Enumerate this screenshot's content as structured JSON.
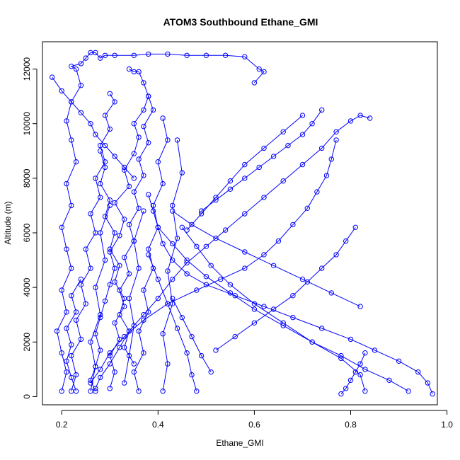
{
  "chart_data": {
    "type": "line",
    "title": "ATOM3 Southbound Ethane_GMI",
    "xlabel": "Ethane_GMI",
    "ylabel": "Altitude (m)",
    "xlim": [
      0.16,
      0.98
    ],
    "ylim": [
      -300,
      13000
    ],
    "xticks": [
      0.2,
      0.4,
      0.6,
      0.8,
      1.0
    ],
    "xtick_labels": [
      "0.2",
      "0.4",
      "0.6",
      "0.8",
      "1.0"
    ],
    "yticks": [
      0,
      2000,
      4000,
      6000,
      8000,
      10000,
      12000
    ],
    "ytick_labels": [
      "0",
      "2000",
      "4000",
      "6000",
      "8000",
      "10000",
      "12000"
    ],
    "grid": false,
    "marker": "open-circle",
    "series_color": "#0000ff",
    "series": [
      {
        "x": [
          0.2,
          0.21,
          0.2,
          0.19,
          0.21,
          0.2,
          0.22,
          0.21,
          0.2,
          0.22,
          0.21,
          0.23,
          0.22,
          0.21,
          0.22,
          0.24,
          0.23,
          0.22,
          0.24,
          0.25,
          0.26,
          0.27,
          0.28,
          0.29,
          0.31,
          0.35,
          0.38,
          0.42,
          0.46,
          0.5,
          0.54,
          0.58,
          0.61,
          0.62,
          0.6
        ],
        "y": [
          200,
          900,
          1600,
          2400,
          3100,
          3900,
          4700,
          5400,
          6200,
          7000,
          7800,
          8600,
          9400,
          10100,
          10800,
          11400,
          12000,
          12100,
          12200,
          12400,
          12600,
          12600,
          12400,
          12500,
          12500,
          12500,
          12550,
          12550,
          12500,
          12500,
          12500,
          12450,
          12000,
          11900,
          11500
        ]
      },
      {
        "x": [
          0.27,
          0.26,
          0.27,
          0.28,
          0.27,
          0.28,
          0.29,
          0.3,
          0.31,
          0.3,
          0.32,
          0.33,
          0.31,
          0.34,
          0.33,
          0.35,
          0.36,
          0.35,
          0.37,
          0.38,
          0.37,
          0.36,
          0.35,
          0.34
        ],
        "y": [
          200,
          600,
          1100,
          1700,
          2300,
          2900,
          3500,
          4100,
          4700,
          5300,
          5900,
          6500,
          7100,
          7700,
          8300,
          8900,
          9500,
          10000,
          10500,
          11000,
          11500,
          11900,
          11900,
          12000
        ]
      },
      {
        "x": [
          0.27,
          0.28,
          0.3,
          0.32,
          0.34,
          0.37,
          0.4,
          0.43,
          0.46,
          0.5,
          0.54,
          0.58,
          0.62,
          0.66,
          0.7,
          0.74,
          0.77,
          0.8,
          0.82,
          0.84
        ],
        "y": [
          300,
          700,
          1200,
          1800,
          2400,
          3000,
          3600,
          4300,
          4900,
          5500,
          6100,
          6700,
          7300,
          7900,
          8500,
          9100,
          9700,
          10100,
          10300,
          10200
        ]
      },
      {
        "x": [
          0.26,
          0.28,
          0.3,
          0.33,
          0.37,
          0.42,
          0.48,
          0.53,
          0.58,
          0.62,
          0.65,
          0.68,
          0.71,
          0.73,
          0.75,
          0.76,
          0.77
        ],
        "y": [
          500,
          1000,
          1600,
          2200,
          2800,
          3400,
          3900,
          4300,
          4700,
          5200,
          5700,
          6300,
          6900,
          7500,
          8100,
          8700,
          9400
        ]
      },
      {
        "x": [
          0.97,
          0.96,
          0.94,
          0.9,
          0.85,
          0.8,
          0.74,
          0.68,
          0.62,
          0.56,
          0.5,
          0.46,
          0.43,
          0.41,
          0.4,
          0.39,
          0.38
        ],
        "y": [
          100,
          500,
          900,
          1300,
          1700,
          2100,
          2500,
          2900,
          3300,
          3700,
          4100,
          4500,
          5000,
          5600,
          6200,
          6800,
          7400
        ]
      },
      {
        "x": [
          0.92,
          0.88,
          0.83,
          0.78,
          0.72,
          0.66,
          0.6,
          0.55,
          0.5,
          0.46,
          0.43,
          0.4
        ],
        "y": [
          200,
          600,
          1000,
          1500,
          2000,
          2600,
          3200,
          3800,
          4400,
          5000,
          5600,
          6200
        ]
      },
      {
        "x": [
          0.83,
          0.82,
          0.78,
          0.72,
          0.66,
          0.6,
          0.55,
          0.51,
          0.48,
          0.45
        ],
        "y": [
          200,
          800,
          1400,
          2000,
          2700,
          3400,
          4100,
          4800,
          5500,
          6200
        ]
      },
      {
        "x": [
          0.22,
          0.23,
          0.22,
          0.24,
          0.23,
          0.25,
          0.24,
          0.26,
          0.25,
          0.27,
          0.26,
          0.28,
          0.27,
          0.29,
          0.28,
          0.3,
          0.29,
          0.31,
          0.3
        ],
        "y": [
          200,
          800,
          1500,
          2100,
          2800,
          3400,
          4100,
          4700,
          5400,
          6000,
          6700,
          7300,
          8000,
          8600,
          9200,
          9800,
          10300,
          10800,
          11100
        ]
      },
      {
        "x": [
          0.3,
          0.31,
          0.3,
          0.32,
          0.31,
          0.33,
          0.32,
          0.34,
          0.33,
          0.35,
          0.34,
          0.36,
          0.35,
          0.37,
          0.36,
          0.38,
          0.37,
          0.39,
          0.38
        ],
        "y": [
          300,
          900,
          1500,
          2100,
          2700,
          3300,
          3900,
          4500,
          5100,
          5700,
          6300,
          6900,
          7500,
          8100,
          8700,
          9300,
          9900,
          10500,
          11000
        ]
      },
      {
        "x": [
          0.36,
          0.35,
          0.37,
          0.36,
          0.38,
          0.37,
          0.39,
          0.38,
          0.4,
          0.39,
          0.41,
          0.4,
          0.42,
          0.41
        ],
        "y": [
          200,
          900,
          1600,
          2400,
          3100,
          3900,
          4700,
          5400,
          6200,
          7000,
          7800,
          8600,
          9400,
          10200
        ]
      },
      {
        "x": [
          0.41,
          0.42,
          0.41,
          0.43,
          0.42,
          0.44,
          0.43,
          0.45,
          0.44
        ],
        "y": [
          200,
          1200,
          2300,
          3400,
          4600,
          5800,
          7000,
          8200,
          9400
        ]
      },
      {
        "x": [
          0.48,
          0.47,
          0.46,
          0.44,
          0.42,
          0.4,
          0.38
        ],
        "y": [
          200,
          800,
          1600,
          2500,
          3400,
          4300,
          5200
        ]
      },
      {
        "x": [
          0.51,
          0.49,
          0.47,
          0.45,
          0.43
        ],
        "y": [
          900,
          1500,
          2200,
          2900,
          3600
        ]
      },
      {
        "x": [
          0.28,
          0.29,
          0.28,
          0.3,
          0.29,
          0.31,
          0.3,
          0.32,
          0.31,
          0.33,
          0.32,
          0.34,
          0.33,
          0.35
        ],
        "y": [
          9000,
          8400,
          7800,
          7200,
          6600,
          6000,
          5400,
          4800,
          4200,
          3600,
          3000,
          2400,
          1800,
          1200
        ]
      },
      {
        "x": [
          0.18,
          0.2,
          0.22,
          0.24,
          0.26,
          0.27,
          0.29,
          0.31,
          0.33,
          0.35
        ],
        "y": [
          11700,
          11200,
          10800,
          10400,
          10000,
          9600,
          9200,
          8800,
          8400,
          8000
        ]
      },
      {
        "x": [
          0.74,
          0.72,
          0.7,
          0.67,
          0.64,
          0.61,
          0.58,
          0.55,
          0.52,
          0.49
        ],
        "y": [
          10500,
          10000,
          9600,
          9200,
          8800,
          8400,
          8000,
          7600,
          7200,
          6800
        ]
      },
      {
        "x": [
          0.7,
          0.66,
          0.62,
          0.58,
          0.55,
          0.52,
          0.49,
          0.46
        ],
        "y": [
          10300,
          9700,
          9100,
          8500,
          7900,
          7300,
          6700,
          6100
        ]
      },
      {
        "x": [
          0.81,
          0.79,
          0.77,
          0.74,
          0.71,
          0.68,
          0.64,
          0.6,
          0.56,
          0.52
        ],
        "y": [
          6200,
          5700,
          5200,
          4700,
          4200,
          3700,
          3200,
          2700,
          2200,
          1700
        ]
      },
      {
        "x": [
          0.82,
          0.76,
          0.7,
          0.64,
          0.58,
          0.52,
          0.47,
          0.43
        ],
        "y": [
          3300,
          3800,
          4300,
          4800,
          5300,
          5800,
          6300,
          6800
        ]
      },
      {
        "x": [
          0.78,
          0.79,
          0.8,
          0.81,
          0.82,
          0.83
        ],
        "y": [
          100,
          300,
          600,
          900,
          1200,
          1600
        ]
      },
      {
        "x": [
          0.23,
          0.22,
          0.21,
          0.22,
          0.21,
          0.23,
          0.22,
          0.24
        ],
        "y": [
          200,
          700,
          1300,
          1900,
          2500,
          3100,
          3700,
          4300
        ]
      },
      {
        "x": [
          0.33,
          0.34,
          0.35,
          0.34,
          0.36,
          0.35,
          0.37
        ],
        "y": [
          500,
          1500,
          2600,
          3600,
          4700,
          5700,
          6800
        ]
      },
      {
        "x": [
          0.26,
          0.27,
          0.26,
          0.28,
          0.27,
          0.29,
          0.28,
          0.3
        ],
        "y": [
          200,
          1100,
          2000,
          3000,
          4000,
          5000,
          6000,
          7000
        ]
      }
    ]
  }
}
